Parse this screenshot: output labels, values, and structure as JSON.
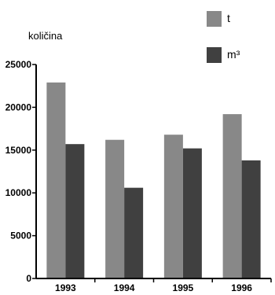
{
  "chart_data": {
    "type": "bar",
    "ylabel": "količina",
    "categories": [
      "1993",
      "1994",
      "1995",
      "1996"
    ],
    "series": [
      {
        "name": "t",
        "values": [
          22900,
          16200,
          16800,
          19200
        ],
        "color": "#888888"
      },
      {
        "name": "m³",
        "values": [
          15700,
          10600,
          15200,
          13800
        ],
        "color": "#404040"
      }
    ],
    "ylim": [
      0,
      25000
    ],
    "yticks": [
      "0",
      "5000",
      "10000",
      "15000",
      "20000",
      "25000"
    ],
    "grid": false,
    "legend_position": "top-right"
  }
}
